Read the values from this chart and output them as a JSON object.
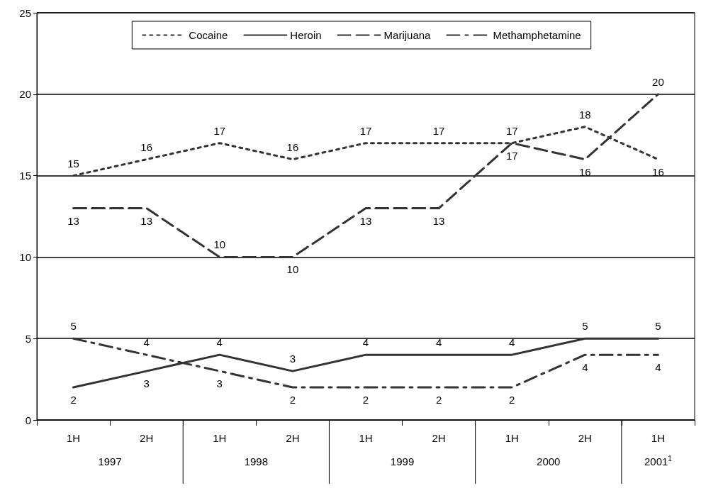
{
  "chart_data": {
    "type": "line",
    "categories": [
      "1H",
      "2H",
      "1H",
      "2H",
      "1H",
      "2H",
      "1H",
      "2H",
      "1H"
    ],
    "annotations": [
      "1997",
      "1998",
      "1999",
      "2000",
      "2001$^{1}$"
    ],
    "series": [
      {
        "name": "Cocaine",
        "color": "#333333",
        "line_style": "dotted",
        "values": [
          15,
          16,
          17,
          16,
          17,
          17,
          17,
          18,
          16
        ]
      },
      {
        "name": "Heroin",
        "color": "#333333",
        "line_style": "solid",
        "values": [
          2,
          3,
          4,
          3,
          4,
          4,
          4,
          5,
          5
        ]
      },
      {
        "name": "Marijuana",
        "color": "#333333",
        "line_style": "dashed",
        "values": [
          13,
          13,
          10,
          10,
          13,
          13,
          17,
          16,
          20
        ]
      },
      {
        "name": "Methamphetamine",
        "color": "#333333",
        "line_style": "dashdot",
        "values": [
          5,
          4,
          3,
          2,
          2,
          2,
          2,
          4,
          4
        ]
      }
    ],
    "ylim": [
      0,
      25
    ],
    "yticks": [
      0,
      5,
      10,
      15,
      20,
      25
    ],
    "grid": "y",
    "legend": "top",
    "marker": "none",
    "data_labels": true
  }
}
